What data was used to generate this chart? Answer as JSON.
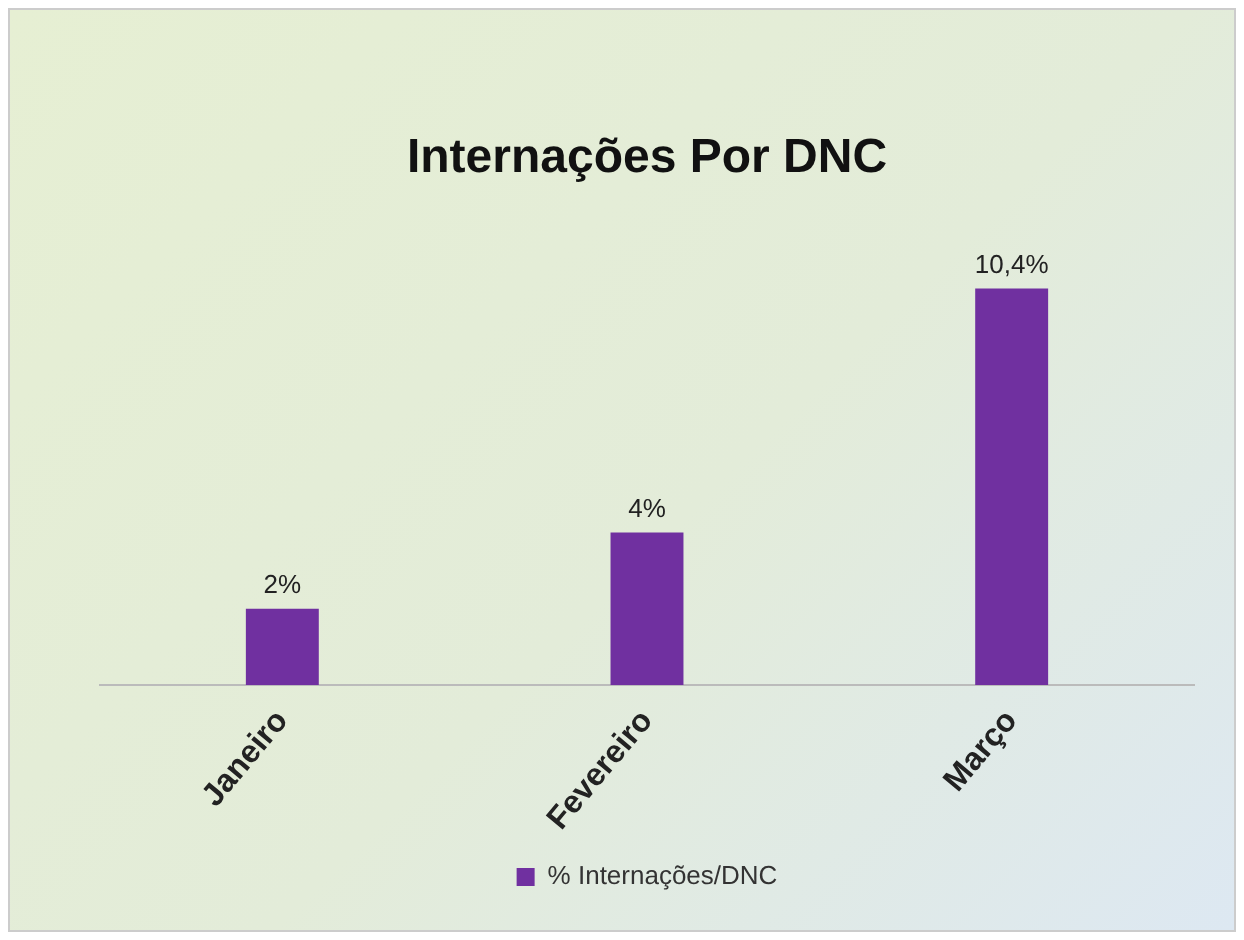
{
  "chart_data": {
    "type": "bar",
    "title": "Internações Por DNC",
    "categories": [
      "Janeiro",
      "Fevereiro",
      "Março"
    ],
    "series": [
      {
        "name": "% Internações/DNC",
        "color": "#7030a0",
        "values": [
          2,
          4,
          10.4
        ],
        "value_labels": [
          "2%",
          "4%",
          "10,4%"
        ]
      }
    ],
    "tick_labels": "x",
    "grid": false,
    "legend": "bottom"
  }
}
